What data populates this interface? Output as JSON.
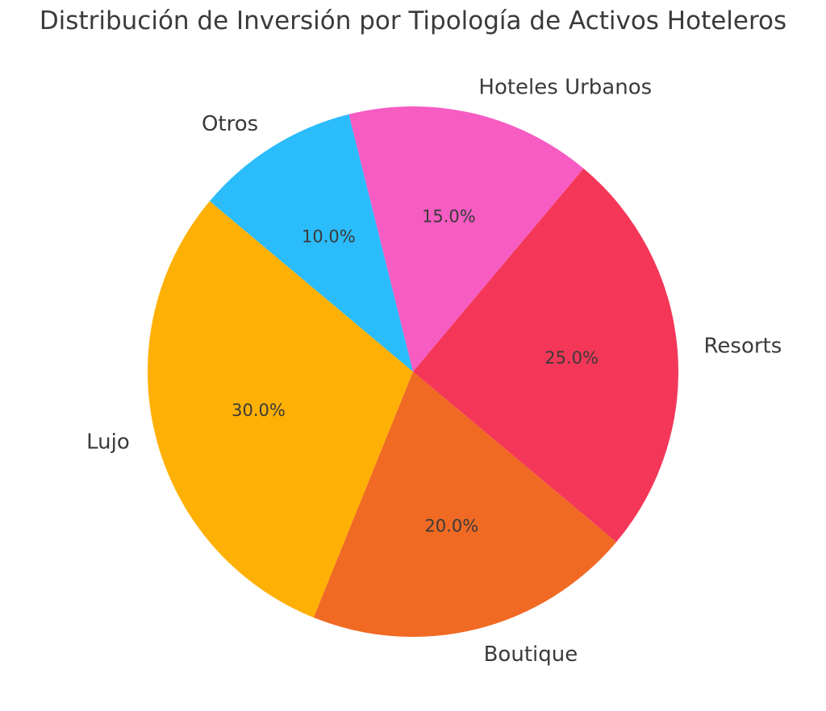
{
  "page": {
    "background_color": "#ffffff",
    "text_color": "#3a3a3a"
  },
  "chart_data": {
    "type": "pie",
    "title": "Distribución de Inversión por Tipología de Activos Hoteleros",
    "title_color": "#3a3a3a",
    "label_color": "#3a3a3a",
    "legend_position": "none",
    "slices": [
      {
        "label": "Hoteles Urbanos",
        "value": 15.0,
        "pct_label": "15.0%",
        "color": "#F65CC2"
      },
      {
        "label": "Resorts",
        "value": 25.0,
        "pct_label": "25.0%",
        "color": "#F43758"
      },
      {
        "label": "Boutique",
        "value": 20.0,
        "pct_label": "20.0%",
        "color": "#F06A24"
      },
      {
        "label": "Lujo",
        "value": 30.0,
        "pct_label": "30.0%",
        "color": "#FFB004"
      },
      {
        "label": "Otros",
        "value": 10.0,
        "pct_label": "10.0%",
        "color": "#2BBCFC"
      }
    ],
    "layout": {
      "start_angle_deg": 104,
      "direction": "clockwise",
      "label_radius_ratio": 1.1,
      "pct_radius_ratio": 0.6
    }
  }
}
